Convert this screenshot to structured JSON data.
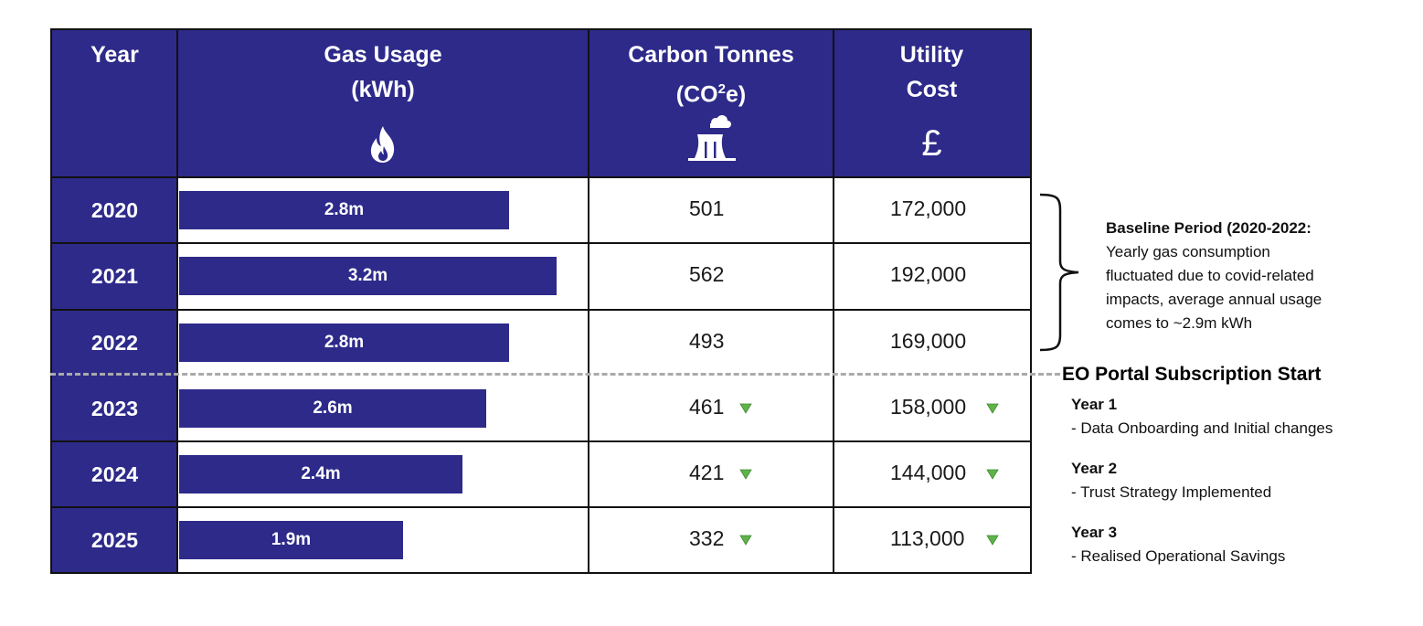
{
  "table": {
    "headers": {
      "year": "Year",
      "gas_line1": "Gas Usage",
      "gas_line2": "(kWh)",
      "carbon_line1": "Carbon Tonnes",
      "carbon_line2_pre": "(CO",
      "carbon_sup": "2",
      "carbon_line2_post": "e)",
      "cost_line1": "Utility",
      "cost_line2": "Cost",
      "cost_symbol": "£"
    },
    "header_icons": [
      "flame-icon",
      "power-plant-icon",
      "pound-sign-icon"
    ],
    "colors": {
      "navy": "#2d2a8a",
      "down_triangle": "#5fb34a",
      "divider": "#aaaaaa"
    }
  },
  "chart_data": {
    "type": "bar",
    "categories": [
      "2020",
      "2021",
      "2022",
      "2023",
      "2024",
      "2025"
    ],
    "values": [
      2.8,
      3.2,
      2.8,
      2.6,
      2.4,
      1.9
    ],
    "data_labels": [
      "2.8m",
      "3.2m",
      "2.8m",
      "2.6m",
      "2.4m",
      "1.9m"
    ],
    "carbon_tonnes": [
      501,
      562,
      493,
      461,
      421,
      332
    ],
    "carbon_labels": [
      "501",
      "562",
      "493",
      "461",
      "421",
      "332"
    ],
    "utility_cost": [
      172000,
      192000,
      169000,
      158000,
      144000,
      113000
    ],
    "cost_labels": [
      "172,000",
      "192,000",
      "169,000",
      "158,000",
      "144,000",
      "113,000"
    ],
    "decrease_indicator": [
      false,
      false,
      false,
      true,
      true,
      true
    ],
    "xlim": [
      0,
      3.2
    ]
  },
  "baseline_note": {
    "title": "Baseline Period (2020-2022:",
    "lines": [
      "Yearly gas consumption",
      "fluctuated due to covid-related",
      "impacts, average annual usage",
      "comes to ~2.9m kWh"
    ]
  },
  "portal": {
    "title": "EO Portal Subscription Start",
    "years": [
      {
        "title": "Year 1",
        "desc": "- Data Onboarding and Initial changes"
      },
      {
        "title": "Year 2",
        "desc": "- Trust Strategy Implemented"
      },
      {
        "title": "Year 3",
        "desc": "- Realised Operational Savings"
      }
    ]
  }
}
